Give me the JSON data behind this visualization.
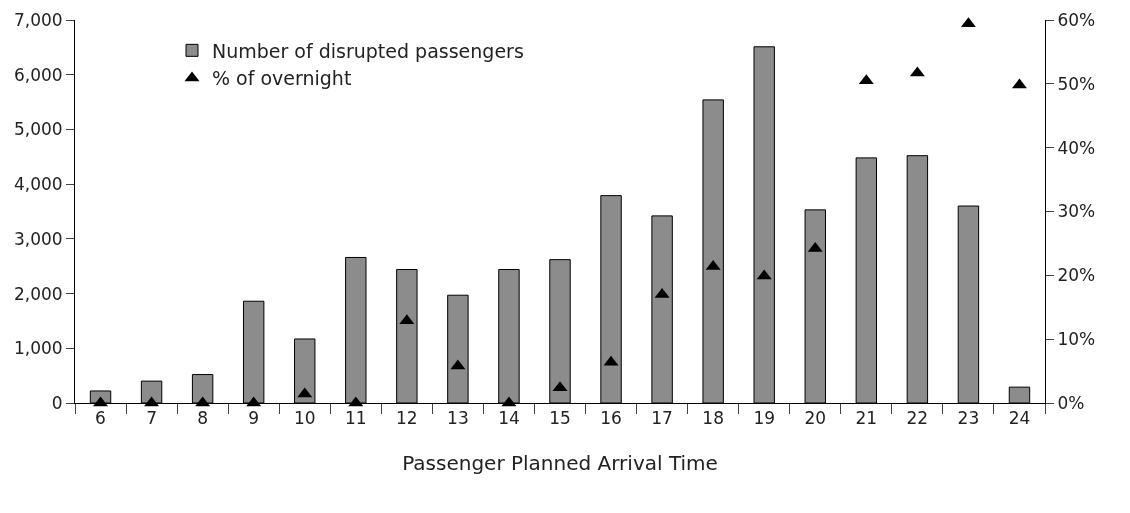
{
  "chart_data": {
    "type": "bar",
    "xlabel": "Passenger Planned Arrival Time",
    "categories": [
      "6",
      "7",
      "8",
      "9",
      "10",
      "11",
      "12",
      "13",
      "14",
      "15",
      "16",
      "17",
      "18",
      "19",
      "20",
      "21",
      "22",
      "23",
      "24"
    ],
    "series": [
      {
        "name": "Number of disrupted passengers",
        "color": "#8c8c8c",
        "values": [
          220,
          400,
          520,
          1860,
          1170,
          2660,
          2440,
          1970,
          2440,
          2620,
          3790,
          3420,
          5540,
          6510,
          3530,
          4480,
          4520,
          3600,
          290
        ]
      },
      {
        "name": "% of overnight",
        "type": "scatter",
        "axis": "y2",
        "color": "#000000",
        "marker": "triangle",
        "values": [
          0,
          0,
          0,
          0,
          1.4,
          0,
          12.9,
          5.8,
          0,
          2.4,
          6.4,
          17.0,
          21.4,
          19.9,
          24.2,
          50.5,
          51.7,
          59.4,
          49.8
        ]
      }
    ],
    "ylim": [
      0,
      7000
    ],
    "yticks": [
      0,
      {
        "value": 1000,
        "label": "1,000"
      },
      {
        "value": 2000,
        "label": "2,000"
      },
      {
        "value": 3000,
        "label": "3,000"
      },
      {
        "value": 4000,
        "label": "4,000"
      },
      {
        "value": 5000,
        "label": "5,000"
      },
      {
        "value": 6000,
        "label": "6,000"
      },
      {
        "value": 7000,
        "label": "7,000"
      }
    ],
    "y2lim": [
      0,
      60
    ],
    "y2ticks": [
      {
        "value": 0,
        "label": "0%"
      },
      {
        "value": 10,
        "label": "10%"
      },
      {
        "value": 20,
        "label": "20%"
      },
      {
        "value": 30,
        "label": "30%"
      },
      {
        "value": 40,
        "label": "40%"
      },
      {
        "value": 50,
        "label": "50%"
      },
      {
        "value": 60,
        "label": "60%"
      }
    ],
    "grid": false,
    "legend": "top left"
  }
}
